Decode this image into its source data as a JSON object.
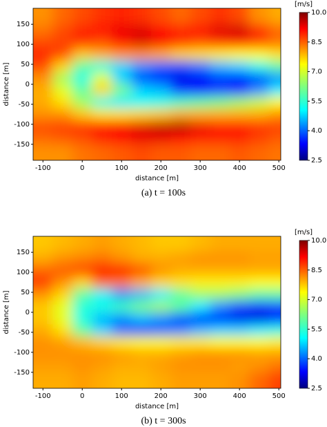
{
  "chart_data": [
    {
      "type": "heatmap",
      "caption": "(a) t = 100s",
      "xlabel": "distance [m]",
      "ylabel": "distance [m]",
      "colorbar_label": "[m/s]",
      "xlim": [
        -125,
        505
      ],
      "ylim": [
        -190,
        190
      ],
      "xticks": [
        -100,
        0,
        100,
        200,
        300,
        400,
        500
      ],
      "yticks": [
        -150,
        -100,
        -50,
        0,
        50,
        100,
        150
      ],
      "clim": [
        2.5,
        10
      ],
      "colorbar_ticks": [
        2.5,
        {
          "value": 4,
          "label": "4.0"
        },
        5.5,
        {
          "value": 7,
          "label": "7.0"
        },
        8.5,
        {
          "value": 10,
          "label": "10.0"
        }
      ],
      "colormap": "jet",
      "x": [
        -100,
        -50,
        0,
        50,
        100,
        150,
        200,
        250,
        300,
        350,
        400,
        450,
        500
      ],
      "y": [
        165,
        135,
        105,
        75,
        45,
        15,
        -15,
        -45,
        -75,
        -105,
        -135,
        -165
      ],
      "z": [
        [
          8.0,
          8.3,
          8.5,
          8.7,
          8.8,
          8.7,
          8.5,
          8.3,
          8.5,
          8.7,
          8.5,
          8.0,
          7.8
        ],
        [
          8.2,
          8.5,
          8.8,
          9.0,
          9.2,
          9.3,
          9.0,
          8.8,
          9.0,
          9.3,
          9.4,
          8.8,
          8.3
        ],
        [
          8.5,
          8.6,
          8.7,
          8.5,
          9.0,
          9.3,
          9.1,
          8.7,
          8.5,
          8.7,
          8.8,
          8.5,
          8.2
        ],
        [
          8.8,
          8.5,
          7.6,
          7.8,
          8.0,
          8.0,
          7.8,
          7.5,
          7.4,
          7.3,
          7.2,
          7.2,
          7.4
        ],
        [
          8.5,
          7.5,
          6.0,
          5.5,
          5.0,
          4.5,
          4.2,
          4.0,
          4.3,
          4.8,
          5.0,
          5.5,
          6.0
        ],
        [
          8.0,
          6.5,
          5.5,
          7.0,
          5.0,
          4.0,
          3.5,
          3.3,
          3.4,
          3.8,
          3.6,
          4.0,
          4.5
        ],
        [
          7.8,
          7.0,
          6.0,
          7.5,
          6.2,
          5.0,
          4.8,
          3.8,
          3.6,
          3.9,
          3.8,
          4.5,
          5.2
        ],
        [
          7.8,
          7.4,
          6.5,
          5.5,
          5.2,
          5.4,
          5.5,
          5.8,
          6.0,
          6.2,
          6.5,
          6.8,
          7.2
        ],
        [
          8.0,
          8.0,
          7.6,
          7.4,
          7.4,
          7.5,
          7.6,
          7.8,
          7.8,
          7.8,
          7.8,
          7.8,
          8.0
        ],
        [
          8.5,
          8.6,
          8.7,
          8.9,
          9.1,
          9.3,
          9.5,
          9.6,
          9.2,
          8.9,
          8.9,
          8.7,
          8.6
        ],
        [
          8.3,
          8.4,
          8.5,
          8.8,
          9.0,
          9.2,
          9.2,
          9.0,
          8.8,
          8.8,
          8.8,
          8.6,
          8.4
        ],
        [
          8.0,
          8.0,
          8.2,
          8.3,
          8.4,
          8.5,
          8.4,
          8.4,
          8.3,
          8.3,
          8.4,
          8.3,
          8.2
        ]
      ]
    },
    {
      "type": "heatmap",
      "caption": "(b) t = 300s",
      "xlabel": "distance [m]",
      "ylabel": "distance [m]",
      "colorbar_label": "[m/s]",
      "xlim": [
        -125,
        505
      ],
      "ylim": [
        -190,
        190
      ],
      "xticks": [
        -100,
        0,
        100,
        200,
        300,
        400,
        500
      ],
      "yticks": [
        -150,
        -100,
        -50,
        0,
        50,
        100,
        150
      ],
      "clim": [
        2.5,
        10
      ],
      "colorbar_ticks": [
        2.5,
        {
          "value": 4,
          "label": "4.0"
        },
        5.5,
        {
          "value": 7,
          "label": "7.0"
        },
        8.5,
        {
          "value": 10,
          "label": "10.0"
        }
      ],
      "colormap": "jet",
      "x": [
        -100,
        -50,
        0,
        50,
        100,
        150,
        200,
        250,
        300,
        350,
        400,
        450,
        500
      ],
      "y": [
        165,
        135,
        105,
        75,
        45,
        15,
        -15,
        -45,
        -75,
        -105,
        -135,
        -165
      ],
      "z": [
        [
          7.6,
          7.7,
          7.8,
          7.9,
          7.8,
          7.7,
          7.6,
          7.6,
          7.7,
          7.8,
          7.8,
          7.8,
          7.8
        ],
        [
          7.8,
          8.0,
          8.1,
          8.2,
          8.0,
          7.8,
          7.8,
          7.9,
          8.0,
          8.0,
          8.0,
          7.9,
          7.9
        ],
        [
          8.3,
          8.4,
          8.6,
          9.0,
          9.0,
          8.5,
          8.0,
          7.8,
          7.8,
          7.8,
          7.8,
          7.8,
          7.8
        ],
        [
          8.7,
          8.0,
          7.5,
          8.3,
          8.2,
          7.8,
          7.5,
          7.4,
          7.3,
          7.3,
          7.3,
          7.2,
          7.2
        ],
        [
          8.0,
          7.5,
          6.0,
          5.2,
          4.5,
          4.8,
          5.2,
          6.0,
          6.5,
          6.5,
          6.3,
          6.0,
          6.0
        ],
        [
          7.6,
          7.0,
          5.6,
          5.5,
          5.8,
          6.2,
          6.5,
          6.0,
          5.2,
          4.5,
          4.0,
          3.8,
          4.0
        ],
        [
          7.6,
          7.0,
          5.5,
          4.8,
          4.5,
          4.8,
          4.5,
          4.0,
          3.8,
          3.6,
          3.3,
          3.2,
          3.5
        ],
        [
          7.8,
          7.4,
          6.0,
          5.0,
          4.2,
          4.0,
          4.2,
          4.4,
          4.8,
          5.0,
          5.0,
          5.2,
          5.5
        ],
        [
          8.0,
          7.9,
          7.7,
          7.5,
          7.3,
          7.2,
          7.2,
          7.3,
          7.3,
          7.2,
          7.2,
          7.2,
          7.3
        ],
        [
          8.0,
          8.0,
          8.0,
          8.0,
          7.9,
          7.8,
          7.8,
          7.9,
          8.0,
          8.0,
          8.0,
          7.9,
          7.9
        ],
        [
          7.9,
          7.9,
          8.0,
          7.9,
          7.8,
          7.8,
          7.9,
          8.0,
          8.0,
          8.0,
          7.9,
          8.0,
          8.2
        ],
        [
          7.8,
          7.8,
          7.9,
          7.8,
          7.7,
          7.7,
          7.8,
          7.9,
          7.9,
          7.9,
          8.0,
          8.3,
          8.6
        ]
      ]
    }
  ]
}
